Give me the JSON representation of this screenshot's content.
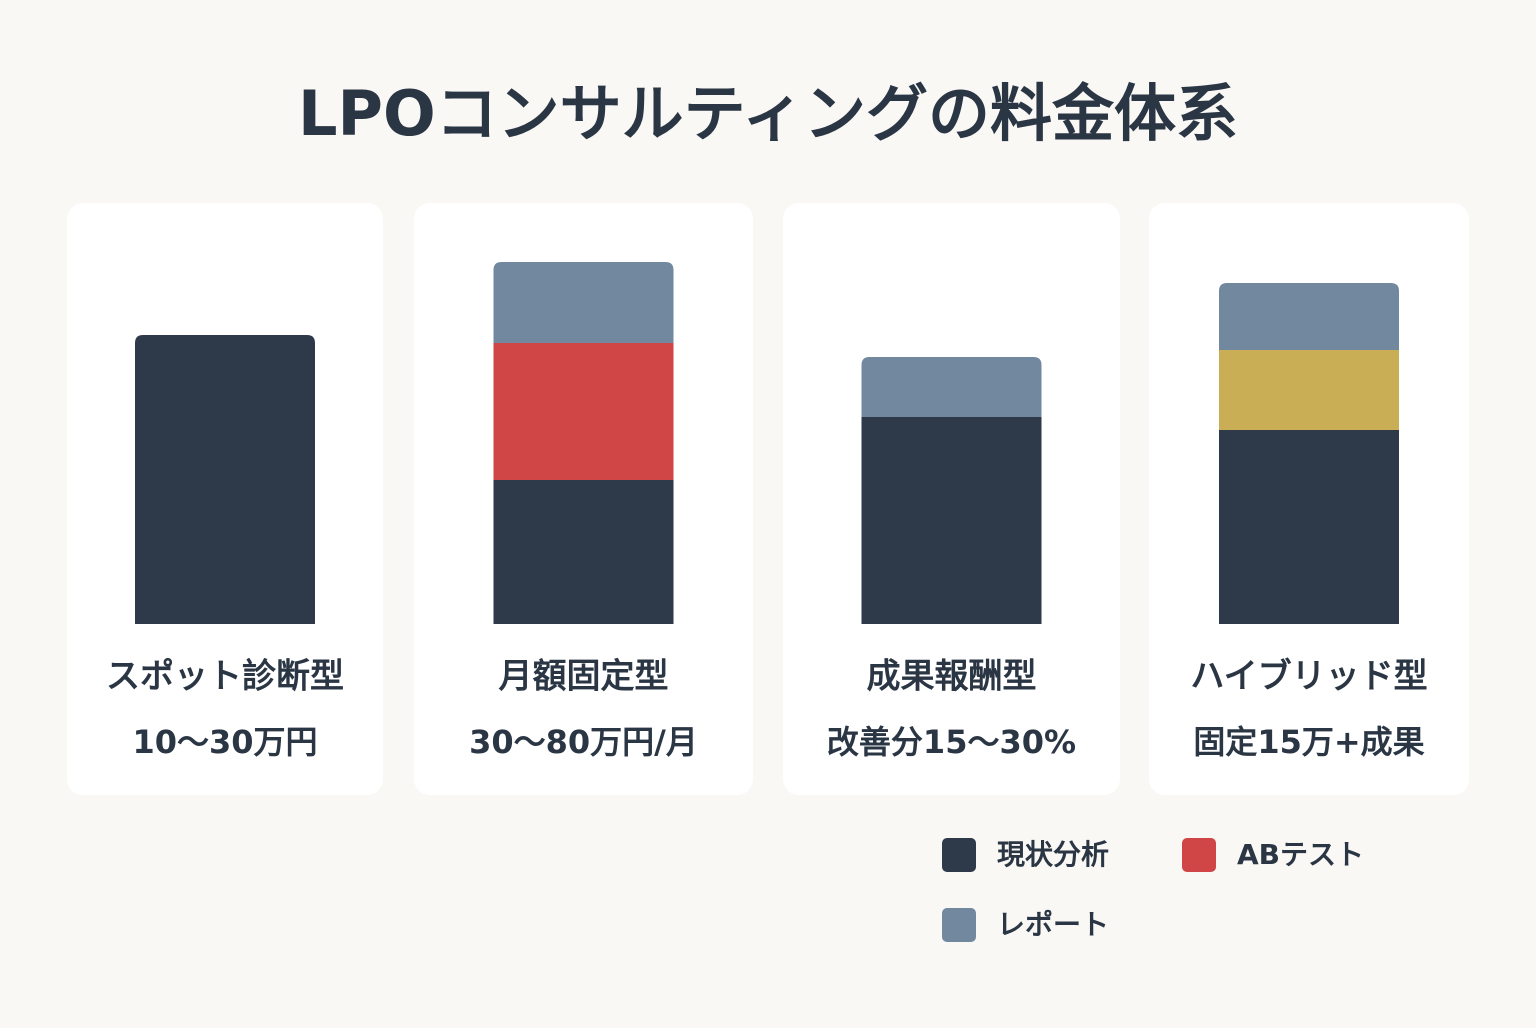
{
  "chart_data": {
    "type": "stacked-bar",
    "title": "LPOコンサルティングの料金体系",
    "categories": [
      "スポット診断型",
      "月額固定型",
      "成果報酬型",
      "ハイブリッド型"
    ],
    "price_labels": [
      "10〜30万円",
      "30〜80万円/月",
      "改善分15〜30%",
      "固定15万+成果"
    ],
    "ylim": [
      0,
      400
    ],
    "series": [
      {
        "name": "現状分析",
        "color": "#2e3a4a",
        "values": [
          289,
          144,
          207,
          194
        ]
      },
      {
        "name": "ABテスト",
        "color": "#d04545",
        "values": [
          null,
          137,
          null,
          null
        ]
      },
      {
        "color": "#c9ae55",
        "values": [
          null,
          null,
          null,
          80
        ]
      },
      {
        "name": "レポート",
        "color": "#72889e",
        "values": [
          null,
          81,
          60,
          67
        ]
      }
    ]
  }
}
